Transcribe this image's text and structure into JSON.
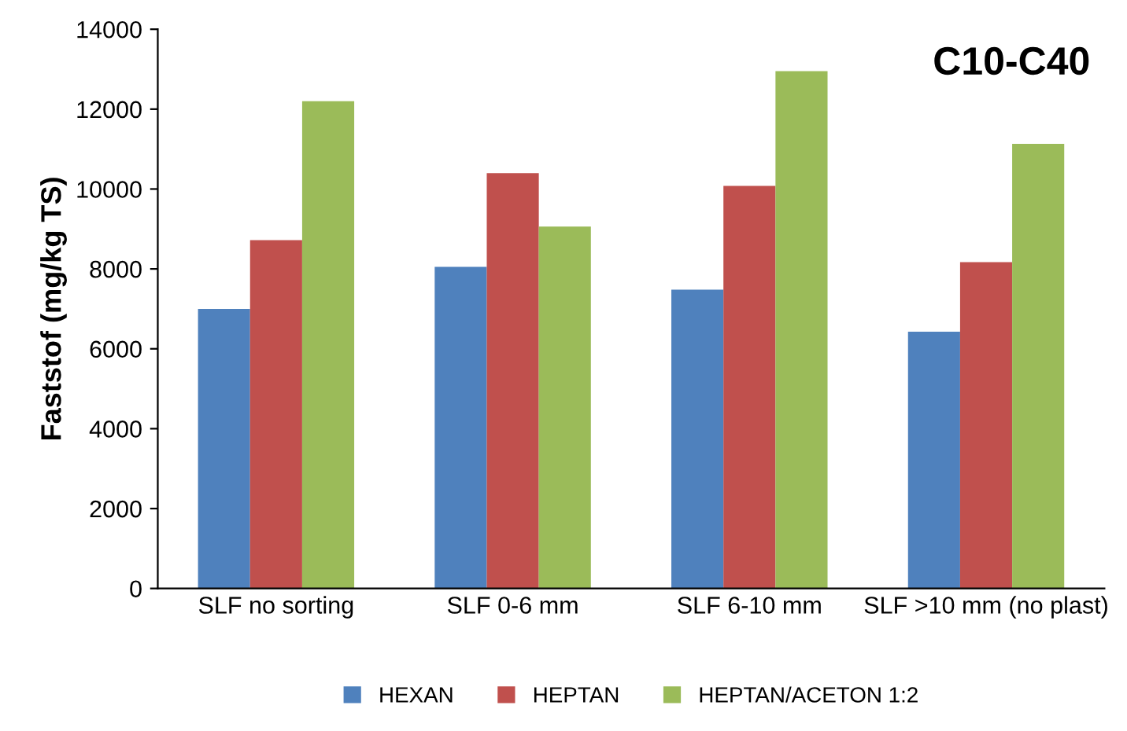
{
  "chart_data": {
    "type": "bar",
    "title": "C10-C40",
    "ylabel": "Faststof (mg/kg TS)",
    "categories": [
      "SLF no sorting",
      "SLF 0-6 mm",
      "SLF 6-10 mm",
      "SLF >10 mm (no plast)"
    ],
    "series": [
      {
        "name": "HEXAN",
        "color": "#4f81bd",
        "values": [
          7000,
          8050,
          7480,
          6430
        ]
      },
      {
        "name": "HEPTAN",
        "color": "#c0504d",
        "values": [
          8720,
          10400,
          10080,
          8170
        ]
      },
      {
        "name": "HEPTAN/ACETON 1:2",
        "color": "#9bbb59",
        "values": [
          12200,
          9060,
          12950,
          11130
        ]
      }
    ],
    "ylim": [
      0,
      14000
    ],
    "yticks": [
      0,
      2000,
      4000,
      6000,
      8000,
      10000,
      12000,
      14000
    ],
    "legend": "bottom"
  }
}
